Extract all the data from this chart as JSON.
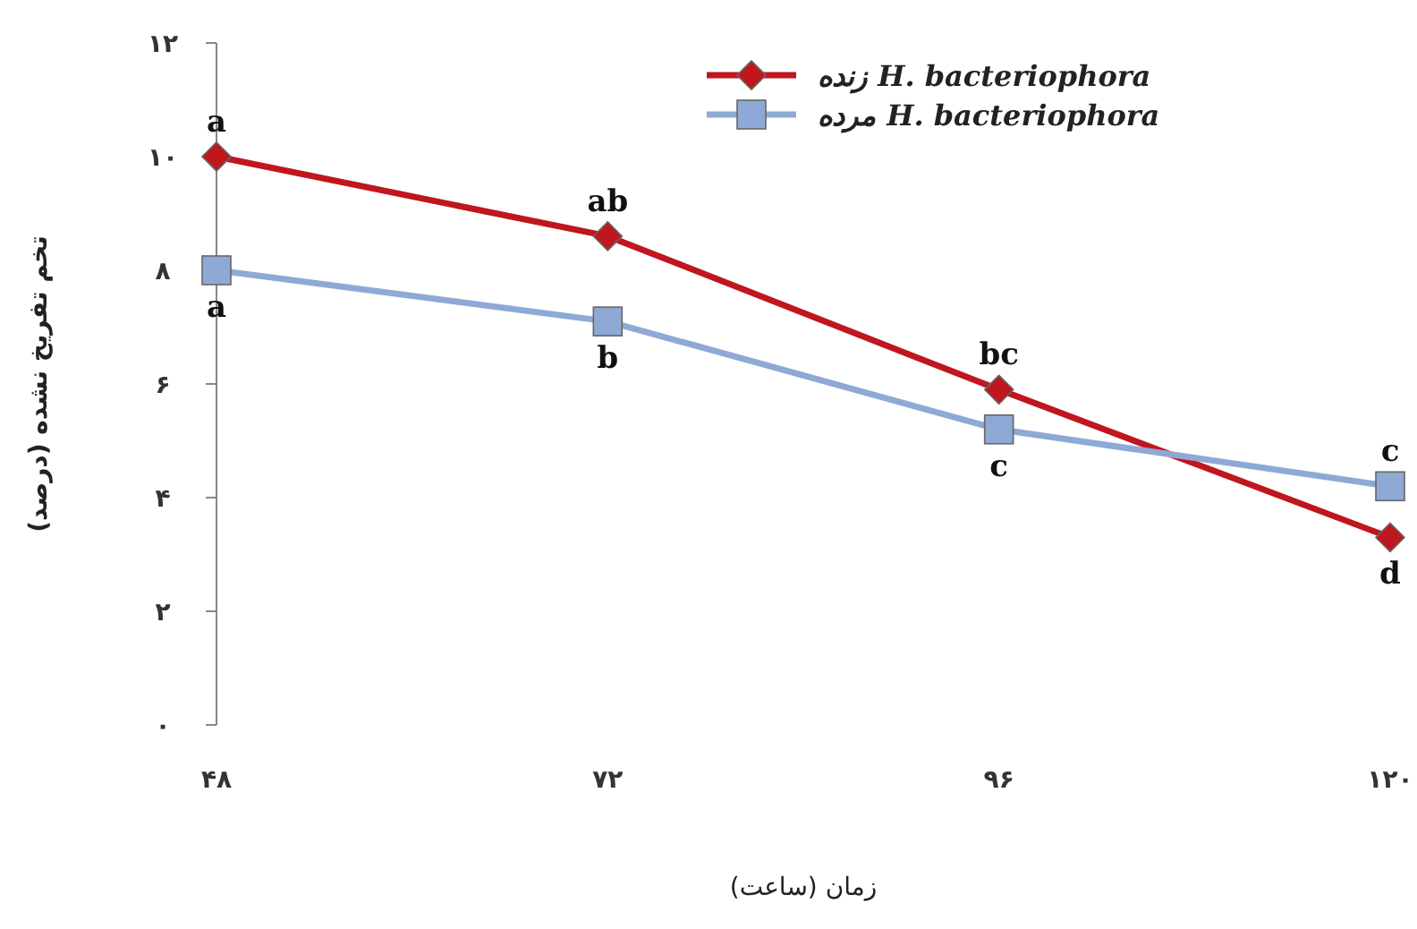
{
  "chart_data": {
    "type": "line",
    "xlabel": "زمان (ساعت)",
    "ylabel": "تخم تفریخ نشده (درصد)",
    "x": [
      48,
      72,
      96,
      120
    ],
    "xlim": [
      48,
      120
    ],
    "xticks": [
      {
        "value": 48,
        "label": "۴۸"
      },
      {
        "value": 72,
        "label": "۷۲"
      },
      {
        "value": 96,
        "label": "۹۶"
      },
      {
        "value": 120,
        "label": "۱۲۰"
      }
    ],
    "ylim": [
      0,
      12
    ],
    "yticks": [
      {
        "value": 0,
        "label": "۰"
      },
      {
        "value": 2,
        "label": "۲"
      },
      {
        "value": 4,
        "label": "۴"
      },
      {
        "value": 6,
        "label": "۶"
      },
      {
        "value": 8,
        "label": "۸"
      },
      {
        "value": 10,
        "label": "۱۰"
      },
      {
        "value": 12,
        "label": "۱۲"
      }
    ],
    "series": [
      {
        "name": "زنده H. bacteriophora",
        "color": "#c0161e",
        "marker": "diamond",
        "values": [
          10,
          8.6,
          5.9,
          3.3
        ]
      },
      {
        "name": "مرده H. bacteriophora",
        "color": "#8fa9d6",
        "marker": "square",
        "values": [
          8,
          7.1,
          5.2,
          4.2
        ]
      }
    ],
    "annotations": [
      {
        "text": "a",
        "x": 48,
        "y": 10
      },
      {
        "text": "ab",
        "x": 72,
        "y": 8.6
      },
      {
        "text": "bc",
        "x": 96,
        "y": 5.9
      },
      {
        "text": "d",
        "x": 120,
        "y": 3.3
      },
      {
        "text": "a",
        "x": 48,
        "y": 8
      },
      {
        "text": "b",
        "x": 72,
        "y": 7.1
      },
      {
        "text": "c",
        "x": 96,
        "y": 5.2
      },
      {
        "text": "c",
        "x": 120,
        "y": 4.2
      }
    ],
    "legend": "top right",
    "grid": false
  }
}
